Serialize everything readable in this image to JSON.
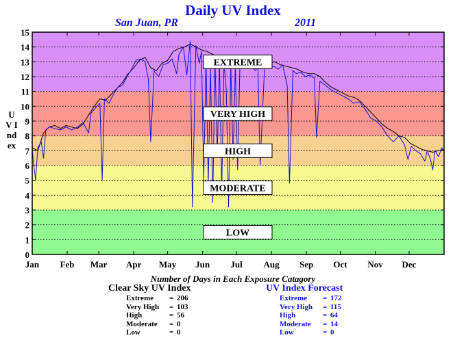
{
  "chart_data": {
    "type": "line",
    "title": "Daily UV Index",
    "location": "San Juan, PR",
    "year": "2011",
    "ylabel": "UV Index",
    "ylim": [
      0,
      15
    ],
    "yticks": [
      0,
      1,
      2,
      3,
      4,
      5,
      6,
      7,
      8,
      9,
      10,
      11,
      12,
      13,
      14,
      15
    ],
    "xlim": [
      0,
      365
    ],
    "months": [
      "Jan",
      "Feb",
      "Mar",
      "Apr",
      "May",
      "Jun",
      "Jul",
      "Aug",
      "Sep",
      "Oct",
      "Nov",
      "Dec"
    ],
    "month_starts": [
      0,
      31,
      59,
      90,
      120,
      151,
      181,
      212,
      243,
      273,
      304,
      334
    ],
    "grid": "horizontal dotted",
    "bands": [
      {
        "label": "LOW",
        "from": 0,
        "to": 3,
        "color": "#90f890"
      },
      {
        "label": "MODERATE",
        "from": 3,
        "to": 6,
        "color": "#f8f890"
      },
      {
        "label": "HIGH",
        "from": 6,
        "to": 8,
        "color": "#f8d090"
      },
      {
        "label": "VERY HIGH",
        "from": 8,
        "to": 11,
        "color": "#f89890"
      },
      {
        "label": "EXTREME",
        "from": 11,
        "to": 15,
        "color": "#d890f8"
      }
    ],
    "series": [
      {
        "name": "Clear Sky UV Index",
        "color": "#000000",
        "points": [
          [
            0,
            7.2
          ],
          [
            5,
            7.0
          ],
          [
            10,
            8.2
          ],
          [
            15,
            8.6
          ],
          [
            20,
            8.7
          ],
          [
            25,
            8.5
          ],
          [
            30,
            8.7
          ],
          [
            35,
            8.6
          ],
          [
            40,
            8.5
          ],
          [
            45,
            8.8
          ],
          [
            50,
            9.4
          ],
          [
            55,
            10.0
          ],
          [
            60,
            10.5
          ],
          [
            65,
            10.4
          ],
          [
            70,
            10.8
          ],
          [
            75,
            11.2
          ],
          [
            80,
            11.6
          ],
          [
            85,
            12.2
          ],
          [
            90,
            12.6
          ],
          [
            95,
            13.1
          ],
          [
            100,
            13.3
          ],
          [
            105,
            12.6
          ],
          [
            110,
            12.4
          ],
          [
            115,
            12.9
          ],
          [
            120,
            13.1
          ],
          [
            125,
            13.7
          ],
          [
            130,
            13.9
          ],
          [
            135,
            14.0
          ],
          [
            140,
            14.2
          ],
          [
            145,
            14.0
          ],
          [
            150,
            13.8
          ],
          [
            155,
            13.7
          ],
          [
            160,
            13.5
          ],
          [
            165,
            13.3
          ],
          [
            170,
            13.2
          ],
          [
            175,
            13.1
          ],
          [
            180,
            13.0
          ],
          [
            185,
            13.0
          ],
          [
            190,
            12.9
          ],
          [
            195,
            12.9
          ],
          [
            200,
            12.8
          ],
          [
            205,
            12.9
          ],
          [
            210,
            12.9
          ],
          [
            215,
            13.0
          ],
          [
            220,
            12.8
          ],
          [
            225,
            12.7
          ],
          [
            230,
            12.6
          ],
          [
            235,
            12.5
          ],
          [
            240,
            12.3
          ],
          [
            245,
            12.2
          ],
          [
            250,
            12.2
          ],
          [
            255,
            12.0
          ],
          [
            260,
            11.6
          ],
          [
            265,
            11.3
          ],
          [
            270,
            11.1
          ],
          [
            275,
            10.9
          ],
          [
            280,
            10.7
          ],
          [
            285,
            10.6
          ],
          [
            290,
            10.4
          ],
          [
            295,
            10.0
          ],
          [
            300,
            9.6
          ],
          [
            305,
            9.2
          ],
          [
            310,
            8.8
          ],
          [
            315,
            8.5
          ],
          [
            320,
            8.3
          ],
          [
            325,
            8.0
          ],
          [
            330,
            7.9
          ],
          [
            335,
            7.5
          ],
          [
            340,
            7.3
          ],
          [
            345,
            7.1
          ],
          [
            350,
            7.0
          ],
          [
            355,
            6.9
          ],
          [
            360,
            7.0
          ],
          [
            365,
            7.1
          ]
        ]
      },
      {
        "name": "UV Index Forecast",
        "color": "#1010e0",
        "points": [
          [
            0,
            7.0
          ],
          [
            3,
            5.0
          ],
          [
            5,
            7.2
          ],
          [
            8,
            7.6
          ],
          [
            10,
            6.5
          ],
          [
            12,
            8.4
          ],
          [
            15,
            8.6
          ],
          [
            20,
            8.5
          ],
          [
            25,
            8.4
          ],
          [
            30,
            8.6
          ],
          [
            35,
            8.4
          ],
          [
            40,
            8.6
          ],
          [
            45,
            8.9
          ],
          [
            50,
            8.2
          ],
          [
            52,
            9.5
          ],
          [
            55,
            9.8
          ],
          [
            60,
            10.2
          ],
          [
            62,
            5.0
          ],
          [
            64,
            10.5
          ],
          [
            68,
            10.2
          ],
          [
            72,
            10.8
          ],
          [
            76,
            11.3
          ],
          [
            80,
            11.4
          ],
          [
            84,
            12.0
          ],
          [
            88,
            12.5
          ],
          [
            92,
            13.1
          ],
          [
            96,
            13.2
          ],
          [
            100,
            13.0
          ],
          [
            103,
            11.8
          ],
          [
            105,
            7.6
          ],
          [
            108,
            12.4
          ],
          [
            112,
            12.0
          ],
          [
            116,
            12.8
          ],
          [
            120,
            12.9
          ],
          [
            124,
            13.2
          ],
          [
            128,
            12.2
          ],
          [
            130,
            13.5
          ],
          [
            134,
            14.0
          ],
          [
            137,
            12.1
          ],
          [
            140,
            14.4
          ],
          [
            142,
            3.2
          ],
          [
            145,
            14.1
          ],
          [
            148,
            12.9
          ],
          [
            150,
            13.7
          ],
          [
            152,
            5.0
          ],
          [
            154,
            13.2
          ],
          [
            156,
            4.8
          ],
          [
            158,
            12.6
          ],
          [
            160,
            3.5
          ],
          [
            162,
            13.3
          ],
          [
            164,
            6.7
          ],
          [
            166,
            12.9
          ],
          [
            168,
            4.4
          ],
          [
            170,
            13.0
          ],
          [
            172,
            11.1
          ],
          [
            174,
            3.2
          ],
          [
            176,
            12.8
          ],
          [
            178,
            6.4
          ],
          [
            180,
            12.8
          ],
          [
            182,
            5.7
          ],
          [
            184,
            12.6
          ],
          [
            186,
            12.9
          ],
          [
            190,
            12.6
          ],
          [
            194,
            12.7
          ],
          [
            198,
            12.4
          ],
          [
            200,
            12.7
          ],
          [
            202,
            6.0
          ],
          [
            206,
            12.8
          ],
          [
            210,
            12.6
          ],
          [
            214,
            12.7
          ],
          [
            218,
            12.5
          ],
          [
            222,
            12.8
          ],
          [
            226,
            11.4
          ],
          [
            228,
            4.8
          ],
          [
            231,
            12.4
          ],
          [
            234,
            12.2
          ],
          [
            238,
            12.3
          ],
          [
            242,
            12.0
          ],
          [
            246,
            12.1
          ],
          [
            250,
            11.9
          ],
          [
            252,
            7.9
          ],
          [
            255,
            11.7
          ],
          [
            260,
            11.4
          ],
          [
            265,
            11.1
          ],
          [
            270,
            10.9
          ],
          [
            275,
            10.7
          ],
          [
            280,
            10.5
          ],
          [
            285,
            10.2
          ],
          [
            290,
            10.3
          ],
          [
            295,
            9.8
          ],
          [
            300,
            9.2
          ],
          [
            305,
            9.0
          ],
          [
            310,
            8.6
          ],
          [
            315,
            8.0
          ],
          [
            320,
            7.6
          ],
          [
            325,
            8.0
          ],
          [
            330,
            7.4
          ],
          [
            333,
            6.4
          ],
          [
            336,
            7.3
          ],
          [
            340,
            7.0
          ],
          [
            344,
            6.8
          ],
          [
            348,
            6.3
          ],
          [
            350,
            7.0
          ],
          [
            353,
            6.4
          ],
          [
            355,
            5.7
          ],
          [
            357,
            7.0
          ],
          [
            360,
            6.6
          ],
          [
            363,
            7.2
          ],
          [
            365,
            7.0
          ]
        ]
      }
    ],
    "stats_title": "Number of Days in Each Exposure Catagory",
    "clear_sky": {
      "title": "Clear Sky UV Index",
      "rows": [
        {
          "label": "Extreme",
          "sep": "=",
          "value": "206"
        },
        {
          "label": "Very High",
          "sep": "=",
          "value": "103"
        },
        {
          "label": "High",
          "sep": "=",
          "value": "56"
        },
        {
          "label": "Moderate",
          "sep": "=",
          "value": "0"
        },
        {
          "label": "Low",
          "sep": "=",
          "value": "0"
        }
      ]
    },
    "forecast": {
      "title": "UV Index Forecast",
      "rows": [
        {
          "label": "Extreme",
          "sep": "=",
          "value": "172"
        },
        {
          "label": "Very High",
          "sep": "=",
          "value": "115"
        },
        {
          "label": "High",
          "sep": "=",
          "value": "64"
        },
        {
          "label": "Moderate",
          "sep": "=",
          "value": "14"
        },
        {
          "label": "Low",
          "sep": "=",
          "value": "0"
        }
      ]
    }
  }
}
